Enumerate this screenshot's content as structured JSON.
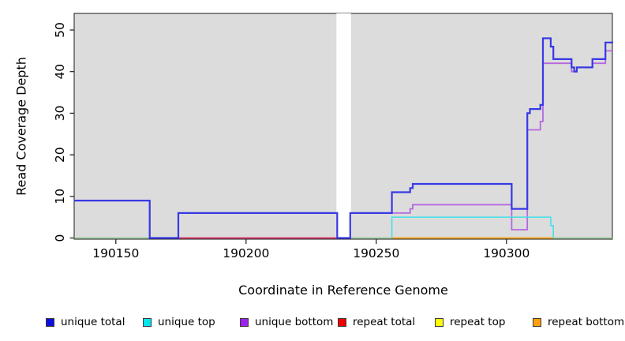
{
  "chart_data": {
    "type": "line",
    "subtype": "step-coverage",
    "title": "",
    "xlabel": "Coordinate in Reference Genome",
    "ylabel": "Read Coverage Depth",
    "xlim": [
      190134,
      190341
    ],
    "ylim": [
      0,
      52
    ],
    "xticks": [
      190150,
      190200,
      190250,
      190300
    ],
    "yticks": [
      0,
      10,
      20,
      30,
      40,
      50
    ],
    "grid": false,
    "plot_background": "#DCDCDC",
    "border_color": "#1a1a1a",
    "gap_band": {
      "x_start": 190235,
      "x_end": 190240,
      "color": "#FFFFFF"
    },
    "series": [
      {
        "name": "baseline",
        "in_legend": false,
        "color": "#82C982",
        "width": 1.2,
        "vertices": [
          [
            190134,
            0
          ],
          [
            190341,
            0
          ]
        ]
      },
      {
        "name": "unique bottom",
        "in_legend": true,
        "color": "#B567E0",
        "width": 1.8,
        "vertices": [
          [
            190134,
            9
          ],
          [
            190163,
            9
          ],
          [
            190163,
            0
          ],
          [
            190240,
            0
          ],
          [
            190240,
            6
          ],
          [
            190263,
            6
          ],
          [
            190263,
            7
          ],
          [
            190264,
            7
          ],
          [
            190264,
            8
          ],
          [
            190302,
            8
          ],
          [
            190302,
            2
          ],
          [
            190308,
            2
          ],
          [
            190308,
            26
          ],
          [
            190313,
            26
          ],
          [
            190313,
            28
          ],
          [
            190314,
            28
          ],
          [
            190314,
            42
          ],
          [
            190325,
            42
          ],
          [
            190325,
            40
          ],
          [
            190327,
            40
          ],
          [
            190327,
            41
          ],
          [
            190333,
            41
          ],
          [
            190333,
            42
          ],
          [
            190338,
            42
          ],
          [
            190338,
            45
          ],
          [
            190341,
            45
          ]
        ]
      },
      {
        "name": "repeat total",
        "in_legend": true,
        "color": "#E02E50",
        "width": 1.4,
        "vertices": [
          [
            190174,
            0
          ],
          [
            190235,
            0
          ]
        ]
      },
      {
        "name": "repeat top",
        "in_legend": true,
        "color": "#F5F500",
        "width": 1.4,
        "vertices": [
          [
            190256,
            0
          ],
          [
            190318,
            0
          ]
        ]
      },
      {
        "name": "repeat bottom",
        "in_legend": true,
        "color": "#FF9712",
        "width": 1.6,
        "vertices": [
          [
            190256,
            0
          ],
          [
            190318,
            0
          ]
        ]
      },
      {
        "name": "unique top",
        "in_legend": true,
        "color": "#3FE0EA",
        "width": 1.5,
        "vertices": [
          [
            190256,
            0
          ],
          [
            190256,
            5
          ],
          [
            190317,
            5
          ],
          [
            190317,
            3
          ],
          [
            190318,
            3
          ],
          [
            190318,
            0
          ]
        ]
      },
      {
        "name": "unique total",
        "in_legend": true,
        "color": "#3838E6",
        "width": 2.2,
        "vertices": [
          [
            190134,
            9
          ],
          [
            190163,
            9
          ],
          [
            190163,
            0
          ],
          [
            190174,
            0
          ],
          [
            190174,
            6
          ],
          [
            190235,
            6
          ],
          [
            190235,
            0
          ],
          [
            190240,
            0
          ],
          [
            190240,
            6
          ],
          [
            190256,
            6
          ],
          [
            190256,
            11
          ],
          [
            190263,
            11
          ],
          [
            190263,
            12
          ],
          [
            190264,
            12
          ],
          [
            190264,
            13
          ],
          [
            190302,
            13
          ],
          [
            190302,
            7
          ],
          [
            190308,
            7
          ],
          [
            190308,
            30
          ],
          [
            190309,
            30
          ],
          [
            190309,
            31
          ],
          [
            190313,
            31
          ],
          [
            190313,
            32
          ],
          [
            190314,
            32
          ],
          [
            190314,
            48
          ],
          [
            190317,
            48
          ],
          [
            190317,
            46
          ],
          [
            190318,
            46
          ],
          [
            190318,
            43
          ],
          [
            190325,
            43
          ],
          [
            190325,
            41
          ],
          [
            190326,
            41
          ],
          [
            190326,
            40
          ],
          [
            190327,
            40
          ],
          [
            190327,
            41
          ],
          [
            190333,
            41
          ],
          [
            190333,
            43
          ],
          [
            190338,
            43
          ],
          [
            190338,
            47
          ],
          [
            190341,
            47
          ]
        ]
      }
    ],
    "legend": {
      "position": "bottom",
      "items": [
        {
          "label": "unique total",
          "color": "#0D0DDE"
        },
        {
          "label": "unique top",
          "color": "#00E6F0"
        },
        {
          "label": "unique bottom",
          "color": "#A020F0"
        },
        {
          "label": "repeat total",
          "color": "#EE0000"
        },
        {
          "label": "repeat top",
          "color": "#FFFF00"
        },
        {
          "label": "repeat bottom",
          "color": "#FFA008"
        }
      ]
    }
  }
}
